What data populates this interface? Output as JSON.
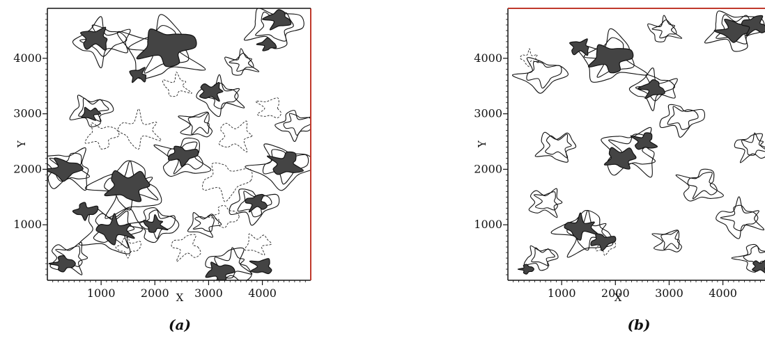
{
  "chart_data": [
    {
      "type": "contour",
      "panel": "(a)",
      "xlabel": "X",
      "ylabel": "Y",
      "xlim": [
        0,
        4900
      ],
      "ylim": [
        0,
        4900
      ],
      "xticks": [
        1000,
        2000,
        3000,
        4000
      ],
      "yticks": [
        1000,
        2000,
        3000,
        4000
      ],
      "regions": [
        {
          "x": 2200,
          "y": 4200,
          "r": 600
        },
        {
          "x": 900,
          "y": 4350,
          "r": 350
        },
        {
          "x": 4300,
          "y": 4700,
          "r": 300
        },
        {
          "x": 300,
          "y": 2000,
          "r": 350
        },
        {
          "x": 1500,
          "y": 1700,
          "r": 500
        },
        {
          "x": 4450,
          "y": 2100,
          "r": 380
        },
        {
          "x": 1250,
          "y": 900,
          "r": 400
        },
        {
          "x": 2500,
          "y": 2250,
          "r": 300
        },
        {
          "x": 3050,
          "y": 3400,
          "r": 280
        },
        {
          "x": 3900,
          "y": 1400,
          "r": 260
        },
        {
          "x": 300,
          "y": 300,
          "r": 250
        },
        {
          "x": 3200,
          "y": 150,
          "r": 300
        },
        {
          "x": 4000,
          "y": 250,
          "r": 260
        },
        {
          "x": 2000,
          "y": 1000,
          "r": 250
        },
        {
          "x": 700,
          "y": 1250,
          "r": 250
        },
        {
          "x": 800,
          "y": 3000,
          "r": 200
        },
        {
          "x": 1700,
          "y": 3700,
          "r": 220
        },
        {
          "x": 4100,
          "y": 4250,
          "r": 200
        }
      ],
      "solid_contours": [
        {
          "x": 2100,
          "y": 4150,
          "r": 900
        },
        {
          "x": 1000,
          "y": 4300,
          "r": 600
        },
        {
          "x": 4200,
          "y": 4550,
          "r": 600
        },
        {
          "x": 400,
          "y": 2000,
          "r": 600
        },
        {
          "x": 1500,
          "y": 1650,
          "r": 800
        },
        {
          "x": 4350,
          "y": 2050,
          "r": 650
        },
        {
          "x": 1200,
          "y": 900,
          "r": 700
        },
        {
          "x": 2550,
          "y": 2200,
          "r": 600
        },
        {
          "x": 3200,
          "y": 3300,
          "r": 500
        },
        {
          "x": 3800,
          "y": 1350,
          "r": 500
        },
        {
          "x": 400,
          "y": 400,
          "r": 450
        },
        {
          "x": 3400,
          "y": 250,
          "r": 550
        },
        {
          "x": 2000,
          "y": 1000,
          "r": 500
        },
        {
          "x": 800,
          "y": 3050,
          "r": 450
        },
        {
          "x": 2800,
          "y": 2800,
          "r": 400
        },
        {
          "x": 3600,
          "y": 3900,
          "r": 350
        },
        {
          "x": 4600,
          "y": 2800,
          "r": 400
        },
        {
          "x": 2900,
          "y": 1000,
          "r": 350
        }
      ],
      "dashed_contours": [
        {
          "x": 1700,
          "y": 2700,
          "r": 450
        },
        {
          "x": 3300,
          "y": 1800,
          "r": 500
        },
        {
          "x": 3500,
          "y": 2600,
          "r": 400
        },
        {
          "x": 2600,
          "y": 600,
          "r": 350
        },
        {
          "x": 3300,
          "y": 1150,
          "r": 300
        },
        {
          "x": 1000,
          "y": 2600,
          "r": 350
        },
        {
          "x": 4150,
          "y": 3100,
          "r": 300
        },
        {
          "x": 2400,
          "y": 3500,
          "r": 300
        },
        {
          "x": 1500,
          "y": 600,
          "r": 250
        },
        {
          "x": 3900,
          "y": 650,
          "r": 280
        }
      ]
    },
    {
      "type": "contour",
      "panel": "(b)",
      "xlabel": "X",
      "ylabel": "Y",
      "xlim": [
        0,
        4900
      ],
      "ylim": [
        0,
        4900
      ],
      "xticks": [
        1000,
        2000,
        3000,
        4000
      ],
      "yticks": [
        1000,
        2000,
        3000,
        4000
      ],
      "regions": [
        {
          "x": 1900,
          "y": 4000,
          "r": 450
        },
        {
          "x": 1350,
          "y": 4200,
          "r": 250
        },
        {
          "x": 2700,
          "y": 3450,
          "r": 280
        },
        {
          "x": 4200,
          "y": 4500,
          "r": 350
        },
        {
          "x": 2100,
          "y": 2200,
          "r": 350
        },
        {
          "x": 2550,
          "y": 2500,
          "r": 280
        },
        {
          "x": 1350,
          "y": 950,
          "r": 350
        },
        {
          "x": 1750,
          "y": 700,
          "r": 250
        },
        {
          "x": 4700,
          "y": 250,
          "r": 200
        },
        {
          "x": 4600,
          "y": 4600,
          "r": 300
        },
        {
          "x": 350,
          "y": 200,
          "r": 150
        }
      ],
      "solid_contours": [
        {
          "x": 1900,
          "y": 4000,
          "r": 750
        },
        {
          "x": 2700,
          "y": 3450,
          "r": 500
        },
        {
          "x": 4200,
          "y": 4500,
          "r": 600
        },
        {
          "x": 2300,
          "y": 2300,
          "r": 700
        },
        {
          "x": 1450,
          "y": 850,
          "r": 650
        },
        {
          "x": 600,
          "y": 3700,
          "r": 500
        },
        {
          "x": 900,
          "y": 2400,
          "r": 450
        },
        {
          "x": 3600,
          "y": 1700,
          "r": 500
        },
        {
          "x": 4300,
          "y": 1100,
          "r": 500
        },
        {
          "x": 3200,
          "y": 2900,
          "r": 450
        },
        {
          "x": 700,
          "y": 1400,
          "r": 400
        },
        {
          "x": 4550,
          "y": 2400,
          "r": 400
        },
        {
          "x": 4600,
          "y": 400,
          "r": 400
        },
        {
          "x": 600,
          "y": 400,
          "r": 350
        },
        {
          "x": 3000,
          "y": 700,
          "r": 350
        },
        {
          "x": 2900,
          "y": 4500,
          "r": 350
        }
      ],
      "dashed_contours": [
        {
          "x": 400,
          "y": 4000,
          "r": 200
        },
        {
          "x": 1800,
          "y": 600,
          "r": 200
        }
      ]
    }
  ]
}
